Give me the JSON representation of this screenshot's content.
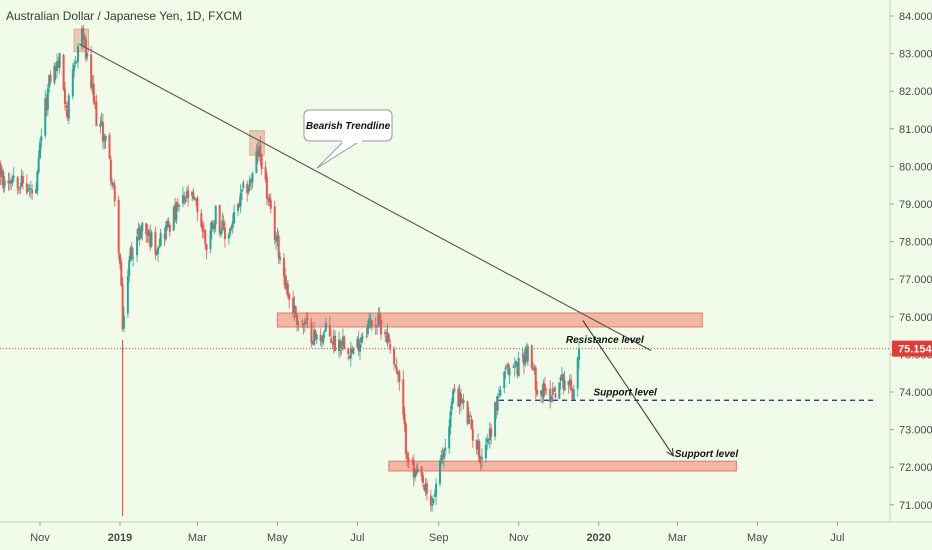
{
  "header": {
    "title": "Australian Dollar / Japanese Yen, 1D, FXCM"
  },
  "colors": {
    "background": "#f0fbe9",
    "up": "#26a69a",
    "down": "#ef5350",
    "zone_fill": "#f4a896",
    "zone_stroke": "#e07a6a",
    "trendline": "#555555",
    "support_dash": "#1a237e",
    "price_line": "#e53935",
    "marker": "#e6b8a0",
    "axis_text": "#4a4a4a"
  },
  "chart_data": {
    "type": "candlestick",
    "instrument": "Australian Dollar / Japanese Yen",
    "timeframe": "1D",
    "source": "FXCM",
    "current_price": "75.154",
    "ylim": [
      70.5,
      84.3
    ],
    "y_ticks": [
      "84.000",
      "83.000",
      "82.000",
      "81.000",
      "80.000",
      "79.000",
      "78.000",
      "77.000",
      "76.000",
      "75.000",
      "74.000",
      "73.000",
      "72.000",
      "71.000"
    ],
    "x_ticks": [
      {
        "label": "Nov",
        "date": "2018-11-01",
        "bold": false
      },
      {
        "label": "2019",
        "date": "2019-01-01",
        "bold": true
      },
      {
        "label": "Mar",
        "date": "2019-03-01",
        "bold": false
      },
      {
        "label": "May",
        "date": "2019-05-01",
        "bold": false
      },
      {
        "label": "Jul",
        "date": "2019-07-01",
        "bold": false
      },
      {
        "label": "Sep",
        "date": "2019-09-01",
        "bold": false
      },
      {
        "label": "Nov",
        "date": "2019-11-01",
        "bold": false
      },
      {
        "label": "2020",
        "date": "2020-01-01",
        "bold": true
      },
      {
        "label": "Mar",
        "date": "2020-03-01",
        "bold": false
      },
      {
        "label": "May",
        "date": "2020-05-01",
        "bold": false
      },
      {
        "label": "Jul",
        "date": "2020-07-01",
        "bold": false
      }
    ],
    "path": [
      [
        "2018-09-24",
        80.6
      ],
      [
        "2018-10-04",
        79.6
      ],
      [
        "2018-10-12",
        79.8
      ],
      [
        "2018-10-22",
        79.4
      ],
      [
        "2018-10-29",
        79.2
      ],
      [
        "2018-11-02",
        80.9
      ],
      [
        "2018-11-09",
        82.4
      ],
      [
        "2018-11-16",
        82.8
      ],
      [
        "2018-11-22",
        81.4
      ],
      [
        "2018-11-30",
        83.2
      ],
      [
        "2018-12-03",
        83.6
      ],
      [
        "2018-12-05",
        83.2
      ],
      [
        "2018-12-14",
        81.3
      ],
      [
        "2018-12-21",
        80.7
      ],
      [
        "2018-12-26",
        79.6
      ],
      [
        "2018-12-31",
        77.9
      ],
      [
        "2019-01-02",
        76.8
      ],
      [
        "2019-01-03",
        75.4
      ],
      [
        "2019-01-04",
        76.2
      ],
      [
        "2019-01-09",
        77.7
      ],
      [
        "2019-01-18",
        78.4
      ],
      [
        "2019-01-28",
        77.9
      ],
      [
        "2019-02-06",
        78.4
      ],
      [
        "2019-02-15",
        78.9
      ],
      [
        "2019-02-22",
        79.2
      ],
      [
        "2019-03-01",
        78.9
      ],
      [
        "2019-03-08",
        77.9
      ],
      [
        "2019-03-15",
        78.8
      ],
      [
        "2019-03-22",
        78.1
      ],
      [
        "2019-03-28",
        78.5
      ],
      [
        "2019-04-05",
        79.3
      ],
      [
        "2019-04-12",
        79.7
      ],
      [
        "2019-04-16",
        80.4
      ],
      [
        "2019-04-19",
        80.2
      ],
      [
        "2019-04-25",
        78.8
      ],
      [
        "2019-05-02",
        77.8
      ],
      [
        "2019-05-10",
        76.5
      ],
      [
        "2019-05-17",
        75.9
      ],
      [
        "2019-05-24",
        75.7
      ],
      [
        "2019-05-31",
        75.4
      ],
      [
        "2019-06-07",
        75.6
      ],
      [
        "2019-06-14",
        75.3
      ],
      [
        "2019-06-21",
        75.4
      ],
      [
        "2019-06-28",
        75.0
      ],
      [
        "2019-07-05",
        75.6
      ],
      [
        "2019-07-12",
        75.9
      ],
      [
        "2019-07-19",
        75.8
      ],
      [
        "2019-07-26",
        75.3
      ],
      [
        "2019-08-02",
        74.2
      ],
      [
        "2019-08-07",
        72.6
      ],
      [
        "2019-08-13",
        71.8
      ],
      [
        "2019-08-19",
        71.6
      ],
      [
        "2019-08-26",
        70.9
      ],
      [
        "2019-08-30",
        71.5
      ],
      [
        "2019-09-06",
        72.6
      ],
      [
        "2019-09-13",
        74.1
      ],
      [
        "2019-09-20",
        73.6
      ],
      [
        "2019-09-27",
        72.9
      ],
      [
        "2019-10-03",
        72.3
      ],
      [
        "2019-10-10",
        72.9
      ],
      [
        "2019-10-17",
        74.0
      ],
      [
        "2019-10-24",
        74.6
      ],
      [
        "2019-10-31",
        74.7
      ],
      [
        "2019-11-07",
        75.1
      ],
      [
        "2019-11-15",
        74.2
      ],
      [
        "2019-11-22",
        73.9
      ],
      [
        "2019-11-29",
        74.1
      ],
      [
        "2019-12-06",
        74.4
      ],
      [
        "2019-12-12",
        74.0
      ],
      [
        "2019-12-17",
        75.15
      ]
    ],
    "annotations": {
      "trendline_label": "Bearish Trendline",
      "resistance_label": "Resistance level",
      "support_label_1": "Support level",
      "support_label_2": "Support level"
    },
    "drawings": {
      "trendline": {
        "from": [
          "2018-12-01",
          83.25
        ],
        "to": [
          "2020-02-10",
          75.1
        ]
      },
      "resistance_zone": {
        "from": "2019-05-01",
        "to": "2020-03-20",
        "low": 75.73,
        "high": 76.1
      },
      "support_zone": {
        "from": "2019-07-25",
        "to": "2020-04-15",
        "low": 71.9,
        "high": 72.16
      },
      "support_dashed": {
        "from": "2019-10-17",
        "to": "2020-07-29",
        "price": 73.78
      },
      "projection_arrow": {
        "from": [
          "2019-12-20",
          75.9
        ],
        "to": [
          "2020-02-27",
          72.3
        ]
      },
      "markers": [
        {
          "from": "2018-11-27",
          "to": "2018-12-08",
          "low": 83.05,
          "high": 83.65
        },
        {
          "from": "2019-04-10",
          "to": "2019-04-21",
          "low": 80.3,
          "high": 80.95
        }
      ],
      "callout_anchor": [
        "2019-05-31",
        79.95
      ],
      "vertical_marker_date": "2019-01-03"
    }
  }
}
